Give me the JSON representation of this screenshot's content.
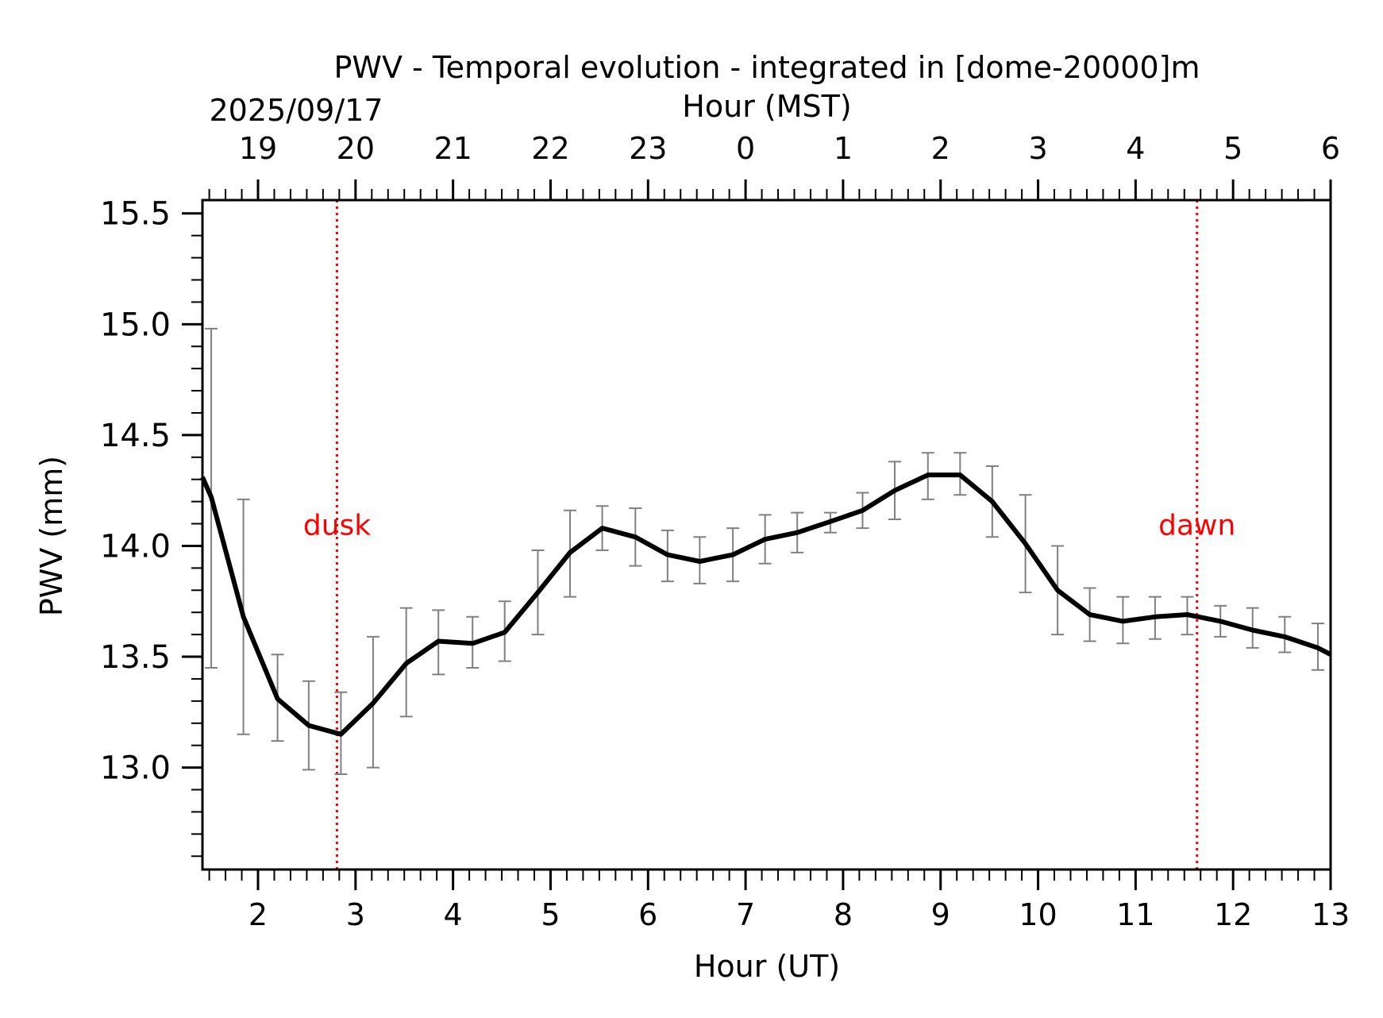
{
  "chart_data": {
    "type": "line",
    "title": "PWV - Temporal evolution - integrated in [dome-20000]m",
    "date_label": "2025/09/17",
    "xlabel": "Hour (UT)",
    "x2label": "Hour (MST)",
    "ylabel": "PWV (mm)",
    "xlim": [
      1.43,
      13.0
    ],
    "ylim": [
      12.54,
      15.56
    ],
    "x_ticks": [
      2,
      3,
      4,
      5,
      6,
      7,
      8,
      9,
      10,
      11,
      12,
      13
    ],
    "x_tick_labels": [
      "2",
      "3",
      "4",
      "5",
      "6",
      "7",
      "8",
      "9",
      "10",
      "11",
      "12",
      "13"
    ],
    "x2_tick_labels": [
      "19",
      "20",
      "21",
      "22",
      "23",
      "0",
      "1",
      "2",
      "3",
      "4",
      "5",
      "6"
    ],
    "y_ticks": [
      13.0,
      13.5,
      14.0,
      14.5,
      15.0,
      15.5
    ],
    "y_tick_labels": [
      "13.0",
      "13.5",
      "14.0",
      "14.5",
      "15.0",
      "15.5"
    ],
    "series": [
      {
        "name": "PWV",
        "color": "#000000",
        "x": [
          1.43,
          1.52,
          1.85,
          2.2,
          2.52,
          2.85,
          3.18,
          3.52,
          3.85,
          4.2,
          4.53,
          4.87,
          5.2,
          5.53,
          5.87,
          6.2,
          6.53,
          6.87,
          7.2,
          7.53,
          7.87,
          8.2,
          8.53,
          8.87,
          9.2,
          9.53,
          9.87,
          10.2,
          10.53,
          10.87,
          11.2,
          11.53,
          11.87,
          12.2,
          12.53,
          12.87,
          13.0
        ],
        "y": [
          14.31,
          14.22,
          13.68,
          13.31,
          13.19,
          13.15,
          13.29,
          13.47,
          13.57,
          13.56,
          13.61,
          13.79,
          13.97,
          14.08,
          14.04,
          13.96,
          13.93,
          13.96,
          14.03,
          14.06,
          14.11,
          14.16,
          14.25,
          14.32,
          14.32,
          14.2,
          14.01,
          13.8,
          13.69,
          13.66,
          13.68,
          13.69,
          13.66,
          13.62,
          13.59,
          13.54,
          13.51
        ]
      }
    ],
    "error_bars": {
      "color": "#808080",
      "x": [
        1.52,
        1.85,
        2.2,
        2.52,
        2.85,
        3.18,
        3.52,
        3.85,
        4.2,
        4.53,
        4.87,
        5.2,
        5.53,
        5.87,
        6.2,
        6.53,
        6.87,
        7.2,
        7.53,
        7.87,
        8.2,
        8.53,
        8.87,
        9.2,
        9.53,
        9.87,
        10.2,
        10.53,
        10.87,
        11.2,
        11.53,
        11.87,
        12.2,
        12.53,
        12.87
      ],
      "low": [
        13.45,
        13.15,
        13.12,
        12.99,
        12.97,
        13.0,
        13.23,
        13.42,
        13.45,
        13.48,
        13.6,
        13.77,
        13.98,
        13.91,
        13.84,
        13.83,
        13.84,
        13.92,
        13.97,
        14.06,
        14.08,
        14.12,
        14.21,
        14.23,
        14.04,
        13.79,
        13.6,
        13.57,
        13.56,
        13.58,
        13.6,
        13.59,
        13.54,
        13.52,
        13.44
      ],
      "high": [
        14.98,
        14.21,
        13.51,
        13.39,
        13.34,
        13.59,
        13.72,
        13.71,
        13.68,
        13.75,
        13.98,
        14.16,
        14.18,
        14.17,
        14.07,
        14.04,
        14.08,
        14.14,
        14.15,
        14.15,
        14.24,
        14.38,
        14.42,
        14.42,
        14.36,
        14.23,
        14.0,
        13.81,
        13.77,
        13.77,
        13.77,
        13.73,
        13.72,
        13.68,
        13.65
      ]
    },
    "annotations": [
      {
        "name": "dusk",
        "text": "dusk",
        "x": 2.81,
        "label_y": 14.05,
        "color": "#ff0000",
        "style": "dotted"
      },
      {
        "name": "dawn",
        "text": "dawn",
        "x": 11.63,
        "label_y": 14.05,
        "color": "#ff0000",
        "style": "dotted"
      }
    ]
  }
}
